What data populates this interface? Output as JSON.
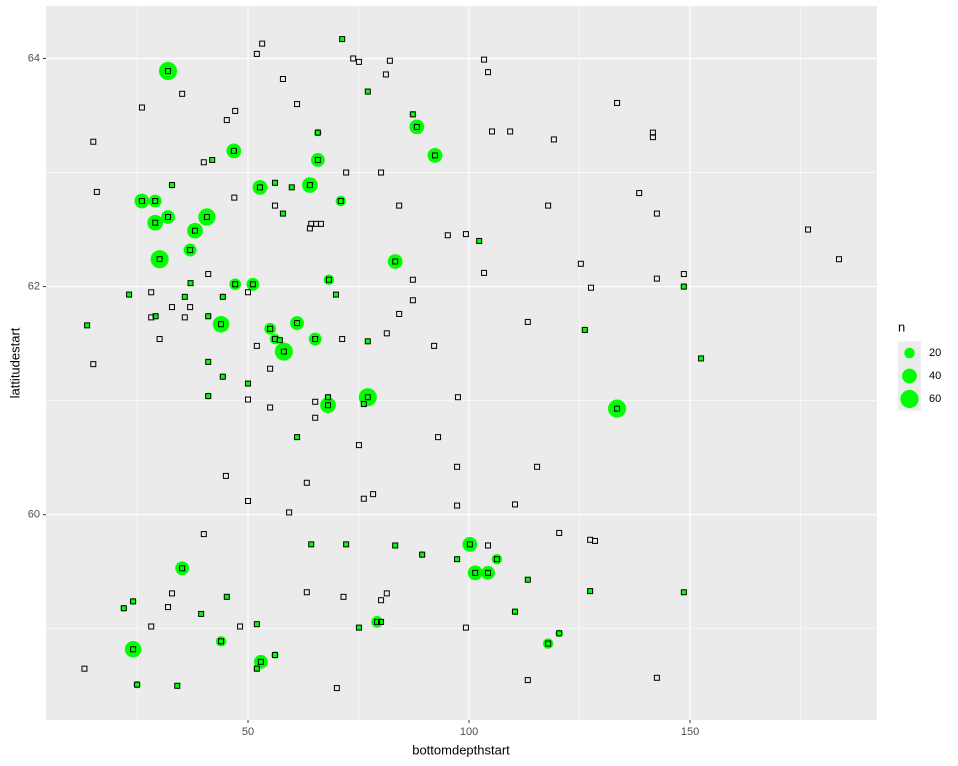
{
  "chart_data": {
    "type": "scatter",
    "x_label": "bottomdepthstart",
    "y_label": "lattitudestart",
    "xlim": [
      4.3,
      192.3
    ],
    "ylim": [
      58.2,
      64.46
    ],
    "xticks": [
      50,
      100,
      150
    ],
    "yticks": [
      60,
      62,
      64
    ],
    "x_minor_ticks": [
      25,
      75,
      125,
      175
    ],
    "y_minor_ticks": [
      59,
      61,
      63
    ],
    "grid": true,
    "marker_color": "#000000",
    "series": [
      {
        "marker": "square",
        "x": [
          15.0,
          15.8,
          26.0,
          35.1,
          53.2,
          52.0,
          57.9,
          47.1,
          45.2,
          61.1,
          73.8,
          75.1,
          81.2,
          82.1,
          103.4,
          104.3,
          133.5,
          105.2,
          109.3,
          119.2,
          141.6,
          141.6,
          138.5,
          142.5,
          176.7,
          183.7,
          125.3,
          127.6,
          142.5,
          148.6,
          117.9,
          95.2,
          99.3,
          103.4,
          113.3,
          92.1,
          84.2,
          81.4,
          87.3,
          87.3,
          80.1,
          84.2,
          72.2,
          64.3,
          65.4,
          66.5,
          64.0,
          56.1,
          46.9,
          40.0,
          41.0,
          28.1,
          50.0,
          28.1,
          32.8,
          35.7,
          36.9,
          30.0,
          15.0,
          52.0,
          55.0,
          50.0,
          55.0,
          65.2,
          65.2,
          71.3,
          97.5,
          93.0,
          97.3,
          115.4,
          75.1,
          63.3,
          45.0,
          50.0,
          76.2,
          78.3,
          59.3,
          97.3,
          110.4,
          40.0,
          120.4,
          127.4,
          128.5,
          104.3,
          32.8,
          31.9,
          28.1,
          63.3,
          71.6,
          81.4,
          80.1,
          48.2,
          99.3,
          13.0,
          113.3,
          142.5,
          70.1
        ],
        "y": [
          63.27,
          62.83,
          63.57,
          63.69,
          64.13,
          64.04,
          63.82,
          63.54,
          63.46,
          63.6,
          64.0,
          63.97,
          63.86,
          63.98,
          63.99,
          63.88,
          63.61,
          63.36,
          63.36,
          63.29,
          63.35,
          63.31,
          62.82,
          62.64,
          62.5,
          62.24,
          62.2,
          61.99,
          62.07,
          62.11,
          62.71,
          62.45,
          62.46,
          62.12,
          61.69,
          61.48,
          61.76,
          61.59,
          61.88,
          62.06,
          63.0,
          62.71,
          63.0,
          62.55,
          62.55,
          62.55,
          62.51,
          62.71,
          62.78,
          63.09,
          62.11,
          61.95,
          61.95,
          61.73,
          61.82,
          61.73,
          61.82,
          61.54,
          61.32,
          61.48,
          61.28,
          61.01,
          60.94,
          60.99,
          60.85,
          61.54,
          61.03,
          60.68,
          60.42,
          60.42,
          60.61,
          60.28,
          60.34,
          60.12,
          60.14,
          60.18,
          60.02,
          60.08,
          60.09,
          59.83,
          59.84,
          59.78,
          59.77,
          59.73,
          59.31,
          59.19,
          59.02,
          59.32,
          59.28,
          59.31,
          59.25,
          59.02,
          59.01,
          58.65,
          58.55,
          58.57,
          58.48
        ]
      },
      {
        "marker": "circle",
        "color": "#00ff00",
        "x": [
          71.3,
          56.1,
          41.9,
          35.7,
          37.0,
          50.0,
          69.9,
          68.3,
          39.4,
          127.4,
          148.6,
          31.9,
          46.8,
          65.8,
          65.8,
          77.1,
          87.3,
          88.2,
          92.3,
          52.7,
          59.9,
          64.0,
          71.0,
          32.8,
          26.0,
          29.0,
          29.0,
          31.9,
          40.7,
          38.0,
          36.9,
          30.0,
          57.9,
          83.3,
          102.3,
          47.1,
          51.1,
          23.1,
          13.6,
          44.3,
          29.1,
          41.0,
          43.9,
          61.1,
          55.0,
          56.1,
          57.2,
          58.1,
          65.2,
          77.1,
          41.0,
          44.3,
          41.0,
          68.1,
          68.1,
          77.1,
          76.2,
          133.5,
          126.2,
          148.6,
          152.5,
          61.1,
          64.3,
          72.2,
          83.3,
          100.2,
          89.4,
          101.4,
          104.3,
          106.3,
          97.3,
          113.3,
          35.1,
          21.9,
          24.0,
          45.2,
          52.0,
          75.1,
          79.2,
          80.1,
          110.4,
          120.4,
          117.9,
          43.9,
          24.0,
          52.9,
          52.0,
          56.1,
          24.9,
          34.0
        ],
        "y": [
          64.17,
          62.91,
          63.11,
          61.91,
          62.03,
          61.15,
          61.93,
          62.06,
          59.13,
          59.33,
          59.32,
          63.89,
          63.19,
          63.35,
          63.11,
          63.71,
          63.51,
          63.4,
          63.15,
          62.87,
          62.87,
          62.89,
          62.75,
          62.89,
          62.75,
          62.75,
          62.56,
          62.61,
          62.61,
          62.49,
          62.32,
          62.24,
          62.64,
          62.22,
          62.4,
          62.02,
          62.02,
          61.93,
          61.66,
          61.91,
          61.74,
          61.74,
          61.67,
          61.68,
          61.63,
          61.54,
          61.53,
          61.43,
          61.54,
          61.52,
          61.34,
          61.21,
          61.04,
          61.03,
          60.96,
          61.03,
          60.97,
          60.93,
          61.62,
          62.0,
          61.37,
          60.68,
          59.74,
          59.74,
          59.73,
          59.74,
          59.65,
          59.49,
          59.49,
          59.61,
          59.61,
          59.43,
          59.53,
          59.18,
          59.24,
          59.28,
          59.04,
          59.01,
          59.06,
          59.06,
          59.15,
          58.96,
          58.87,
          58.89,
          58.82,
          58.71,
          58.65,
          58.77,
          58.51,
          58.5
        ],
        "size": [
          5,
          5,
          5,
          5,
          5,
          5,
          5,
          20,
          5,
          5,
          5,
          60,
          40,
          10,
          35,
          5,
          8,
          40,
          40,
          40,
          5,
          45,
          20,
          8,
          40,
          30,
          45,
          35,
          55,
          45,
          30,
          60,
          5,
          40,
          5,
          25,
          30,
          5,
          5,
          8,
          8,
          8,
          50,
          35,
          25,
          20,
          5,
          60,
          30,
          5,
          5,
          8,
          8,
          8,
          45,
          60,
          5,
          60,
          8,
          8,
          5,
          5,
          5,
          5,
          5,
          40,
          8,
          40,
          35,
          20,
          5,
          5,
          35,
          8,
          8,
          5,
          5,
          5,
          25,
          5,
          8,
          10,
          20,
          20,
          50,
          35,
          8,
          10,
          10,
          5
        ]
      }
    ],
    "size_legend": {
      "title": "n",
      "values": [
        20,
        40,
        60
      ]
    }
  }
}
